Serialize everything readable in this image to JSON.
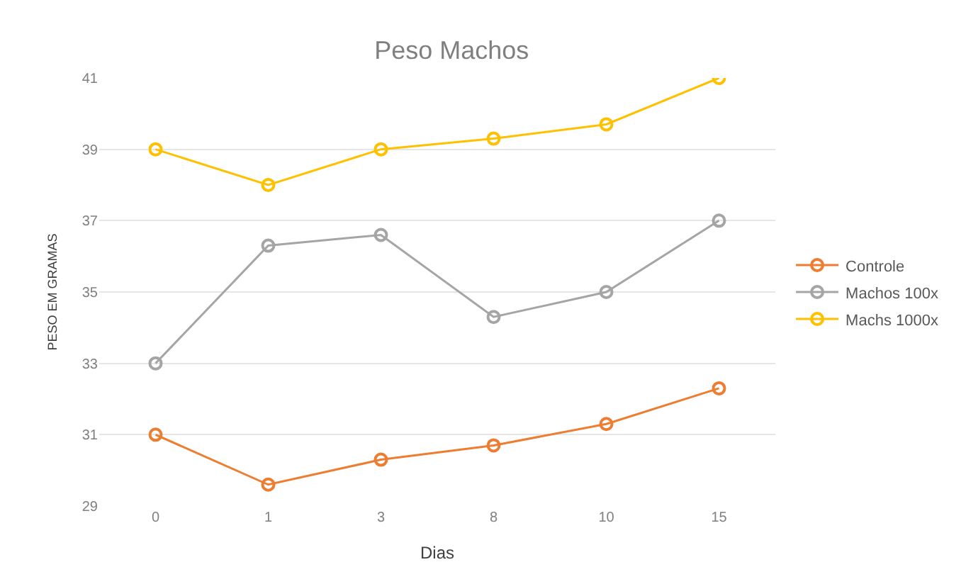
{
  "chart_data": {
    "type": "line",
    "title": "Peso Machos",
    "xlabel": "Dias",
    "ylabel": "PESO EM GRAMAS",
    "categories": [
      "0",
      "1",
      "3",
      "8",
      "10",
      "15"
    ],
    "series": [
      {
        "name": "Controle",
        "color": "#ed7d31",
        "values": [
          31.0,
          29.6,
          30.3,
          30.7,
          31.3,
          32.3
        ]
      },
      {
        "name": "Machos 100x",
        "color": "#a5a5a5",
        "values": [
          33.0,
          36.3,
          36.6,
          34.3,
          35.0,
          37.0
        ]
      },
      {
        "name": "Machs 1000x",
        "color": "#ffc000",
        "values": [
          39.0,
          38.0,
          39.0,
          39.3,
          39.7,
          41.0
        ]
      }
    ],
    "ylim": [
      29,
      41
    ],
    "yticks": [
      29,
      31,
      33,
      35,
      37,
      39,
      41
    ],
    "grid": "y",
    "legend": "right",
    "marker": "circle",
    "line_style": "solid"
  }
}
